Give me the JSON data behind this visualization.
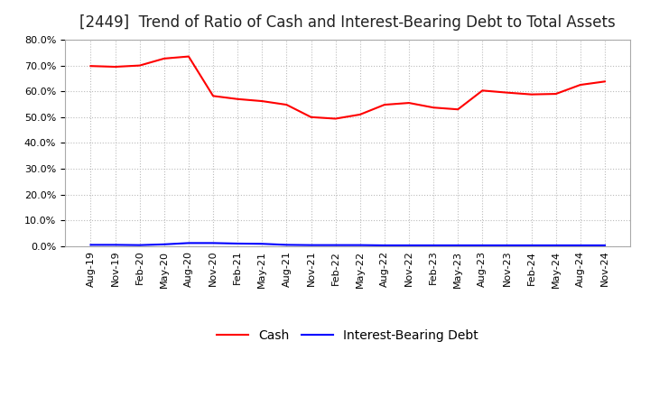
{
  "title": "[2449]  Trend of Ratio of Cash and Interest-Bearing Debt to Total Assets",
  "ylim": [
    0.0,
    0.8
  ],
  "yticks": [
    0.0,
    0.1,
    0.2,
    0.3,
    0.4,
    0.5,
    0.6,
    0.7,
    0.8
  ],
  "x_labels": [
    "Aug-19",
    "Nov-19",
    "Feb-20",
    "May-20",
    "Aug-20",
    "Nov-20",
    "Feb-21",
    "May-21",
    "Aug-21",
    "Nov-21",
    "Feb-22",
    "May-22",
    "Aug-22",
    "Nov-22",
    "Feb-23",
    "May-23",
    "Aug-23",
    "Nov-23",
    "Feb-24",
    "May-24",
    "Aug-24",
    "Nov-24"
  ],
  "cash": [
    0.698,
    0.695,
    0.7,
    0.727,
    0.735,
    0.582,
    0.57,
    0.562,
    0.548,
    0.5,
    0.494,
    0.51,
    0.548,
    0.555,
    0.537,
    0.53,
    0.603,
    0.595,
    0.588,
    0.59,
    0.625,
    0.638
  ],
  "ibd": [
    0.005,
    0.005,
    0.004,
    0.007,
    0.012,
    0.012,
    0.01,
    0.009,
    0.005,
    0.004,
    0.004,
    0.004,
    0.003,
    0.003,
    0.003,
    0.003,
    0.003,
    0.003,
    0.003,
    0.003,
    0.003,
    0.003
  ],
  "cash_color": "#ff0000",
  "ibd_color": "#0000ff",
  "grid_color": "#bbbbbb",
  "background_color": "#ffffff",
  "title_fontsize": 12,
  "tick_fontsize": 8,
  "legend_fontsize": 10
}
